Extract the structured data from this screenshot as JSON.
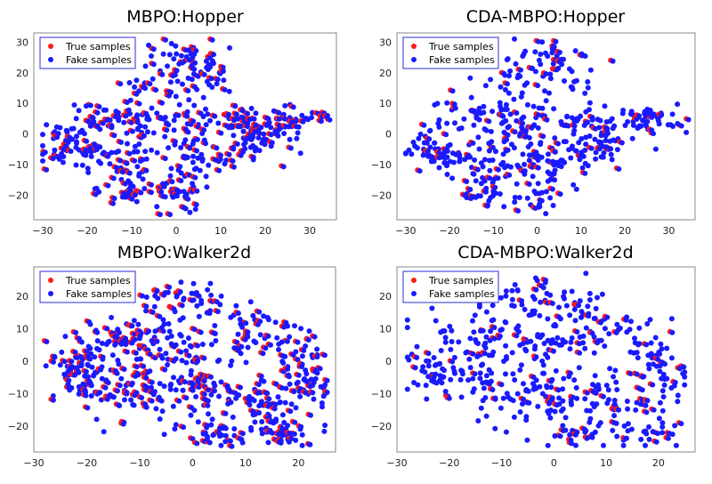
{
  "chart_data": [
    {
      "type": "scatter",
      "title": "MBPO:Hopper",
      "xlim": [
        -32,
        36
      ],
      "ylim": [
        -28,
        33
      ],
      "xticks": [
        -30,
        -20,
        -10,
        0,
        10,
        20,
        30
      ],
      "yticks": [
        -20,
        -10,
        0,
        10,
        20,
        30
      ],
      "legend_position": "top-left",
      "series": [
        {
          "name": "True samples",
          "color": "#ff1a1a",
          "marker": "circle"
        },
        {
          "name": "Fake samples",
          "color": "#1a1aff",
          "marker": "circle"
        }
      ],
      "shape": "hopper",
      "true_ratio": 0.42,
      "n_points": 560
    },
    {
      "type": "scatter",
      "title": "CDA-MBPO:Hopper",
      "xlim": [
        -32,
        36
      ],
      "ylim": [
        -28,
        33
      ],
      "xticks": [
        -30,
        -20,
        -10,
        0,
        10,
        20,
        30
      ],
      "yticks": [
        -20,
        -10,
        0,
        10,
        20,
        30
      ],
      "legend_position": "top-left",
      "series": [
        {
          "name": "True samples",
          "color": "#ff1a1a",
          "marker": "circle"
        },
        {
          "name": "Fake samples",
          "color": "#1a1aff",
          "marker": "circle"
        }
      ],
      "shape": "hopper",
      "true_ratio": 0.22,
      "n_points": 520
    },
    {
      "type": "scatter",
      "title": "MBPO:Walker2d",
      "xlim": [
        -30,
        27
      ],
      "ylim": [
        -28,
        29
      ],
      "xticks": [
        -30,
        -20,
        -10,
        0,
        10,
        20
      ],
      "yticks": [
        -20,
        -10,
        0,
        10,
        20
      ],
      "legend_position": "top-left",
      "series": [
        {
          "name": "True samples",
          "color": "#ff1a1a",
          "marker": "circle"
        },
        {
          "name": "Fake samples",
          "color": "#1a1aff",
          "marker": "circle"
        }
      ],
      "shape": "walker",
      "true_ratio": 0.4,
      "n_points": 640
    },
    {
      "type": "scatter",
      "title": "CDA-MBPO:Walker2d",
      "xlim": [
        -30,
        27
      ],
      "ylim": [
        -28,
        29
      ],
      "xticks": [
        -30,
        -20,
        -10,
        0,
        10,
        20
      ],
      "yticks": [
        -20,
        -10,
        0,
        10,
        20
      ],
      "legend_position": "top-left",
      "series": [
        {
          "name": "True samples",
          "color": "#ff1a1a",
          "marker": "circle"
        },
        {
          "name": "Fake samples",
          "color": "#1a1aff",
          "marker": "circle"
        }
      ],
      "shape": "walker",
      "true_ratio": 0.22,
      "n_points": 520
    }
  ]
}
